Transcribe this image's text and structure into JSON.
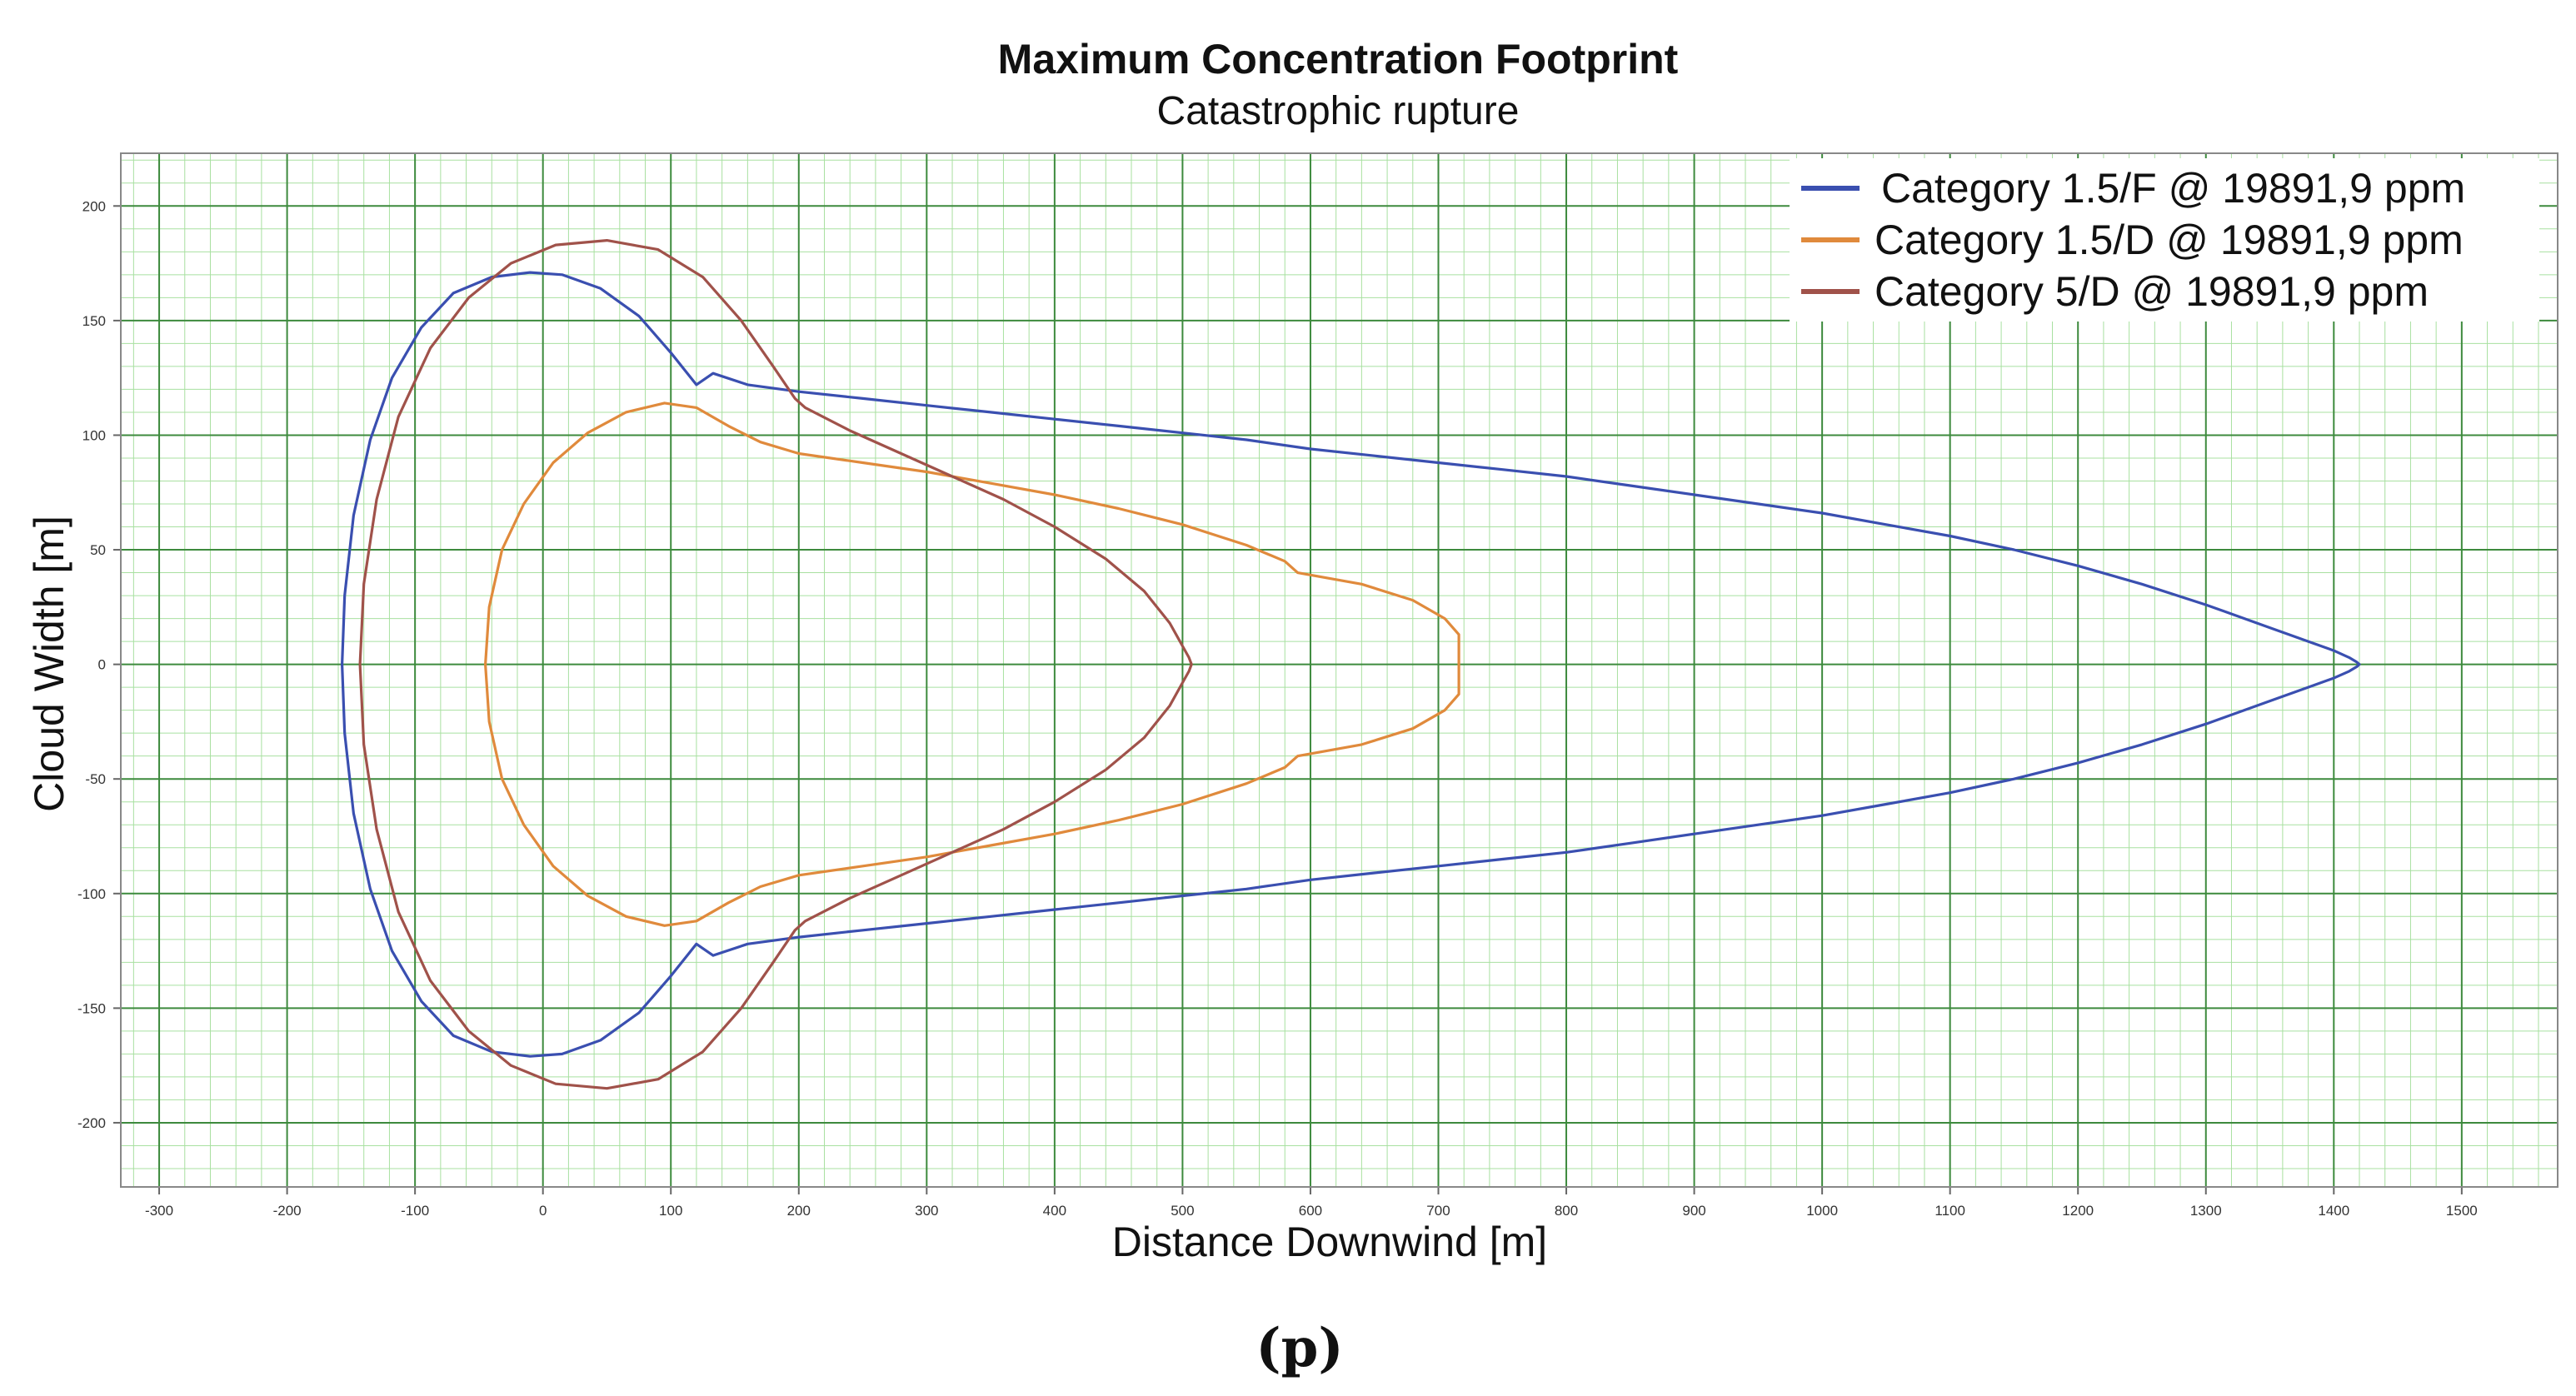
{
  "caption": "(p)",
  "chart_data": {
    "type": "line",
    "title": "Maximum Concentration Footprint",
    "subtitle": "Catastrophic rupture",
    "xlabel": "Distance Downwind [m]",
    "ylabel": "Cloud Width [m]",
    "xlim": [
      -330,
      1575
    ],
    "ylim": [
      -228,
      223
    ],
    "xticks": [
      -300,
      -200,
      -100,
      0,
      100,
      200,
      300,
      400,
      500,
      600,
      700,
      800,
      900,
      1000,
      1100,
      1200,
      1300,
      1400,
      1500
    ],
    "yticks": [
      -200,
      -150,
      -100,
      -50,
      0,
      50,
      100,
      150,
      200
    ],
    "grid": true,
    "legend": "top-right",
    "series": [
      {
        "name": "Category 1.5/F @ 19891,9 ppm",
        "color": "#3a4fb0",
        "x": [
          -157,
          -155,
          -148,
          -135,
          -118,
          -95,
          -70,
          -40,
          -10,
          15,
          45,
          75,
          100,
          120,
          133,
          160,
          200,
          250,
          300,
          350,
          400,
          450,
          500,
          550,
          600,
          650,
          700,
          750,
          800,
          850,
          900,
          950,
          1000,
          1050,
          1100,
          1150,
          1200,
          1250,
          1300,
          1350,
          1380,
          1400,
          1412,
          1418,
          1420
        ],
        "y": [
          0,
          30,
          65,
          98,
          125,
          147,
          162,
          169,
          171,
          170,
          164,
          152,
          136,
          122,
          127,
          122,
          119,
          116,
          113,
          110,
          107,
          104,
          101,
          98,
          94,
          91,
          88,
          85,
          82,
          78,
          74,
          70,
          66,
          61,
          56,
          50,
          43,
          35,
          26,
          16,
          10,
          6,
          3,
          1,
          0
        ]
      },
      {
        "name": "Category 1.5/D @ 19891,9 ppm",
        "color": "#e08a3c",
        "x": [
          -45,
          -42,
          -32,
          -15,
          8,
          35,
          65,
          95,
          120,
          145,
          170,
          200,
          250,
          300,
          350,
          400,
          450,
          500,
          550,
          580,
          590,
          640,
          680,
          705,
          716,
          716
        ],
        "y": [
          0,
          25,
          50,
          70,
          88,
          101,
          110,
          114,
          112,
          104,
          97,
          92,
          88,
          84,
          79,
          74,
          68,
          61,
          52,
          45,
          40,
          35,
          28,
          20,
          13,
          0
        ]
      },
      {
        "name": "Category 5/D @ 19891,9 ppm",
        "color": "#a0524a",
        "x": [
          -143,
          -140,
          -130,
          -113,
          -88,
          -58,
          -25,
          10,
          50,
          90,
          125,
          155,
          180,
          197,
          205,
          240,
          280,
          320,
          360,
          400,
          440,
          470,
          490,
          500,
          505,
          507
        ],
        "y": [
          0,
          35,
          72,
          108,
          138,
          160,
          175,
          183,
          185,
          181,
          169,
          150,
          130,
          116,
          112,
          102,
          92,
          82,
          72,
          60,
          46,
          32,
          18,
          8,
          3,
          0
        ]
      }
    ]
  }
}
